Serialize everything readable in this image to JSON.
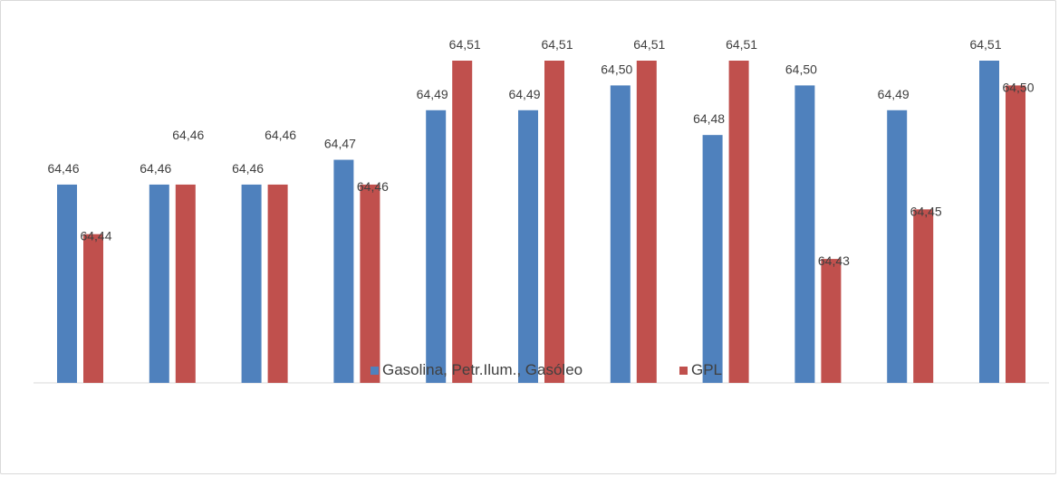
{
  "chart_data": {
    "type": "bar",
    "categories": [
      "",
      "",
      "",
      "",
      "",
      "",
      "",
      "",
      "",
      "",
      ""
    ],
    "series": [
      {
        "name": "Gasolina, Petr.Ilum., Gasóleo",
        "color": "#4f81bd",
        "values": [
          64.46,
          64.46,
          64.46,
          64.47,
          64.49,
          64.49,
          64.5,
          64.48,
          64.5,
          64.49,
          64.51
        ],
        "labels": [
          "64,46",
          "64,46",
          "64,46",
          "64,47",
          "64,49",
          "64,49",
          "64,50",
          "64,48",
          "64,50",
          "64,49",
          "64,51"
        ]
      },
      {
        "name": "GPL",
        "color": "#c0504d",
        "values": [
          64.44,
          64.46,
          64.46,
          64.46,
          64.51,
          64.51,
          64.51,
          64.51,
          64.43,
          64.45,
          64.5
        ],
        "labels": [
          "64,44",
          "64,46",
          "64,46",
          "64,46",
          "64,51",
          "64,51",
          "64,51",
          "64,51",
          "64,43",
          "64,45",
          "64,50"
        ]
      }
    ],
    "ylim": [
      64.38,
      64.51
    ],
    "grid": false,
    "legend_position": "bottom",
    "title": "",
    "xlabel": "",
    "ylabel": ""
  }
}
